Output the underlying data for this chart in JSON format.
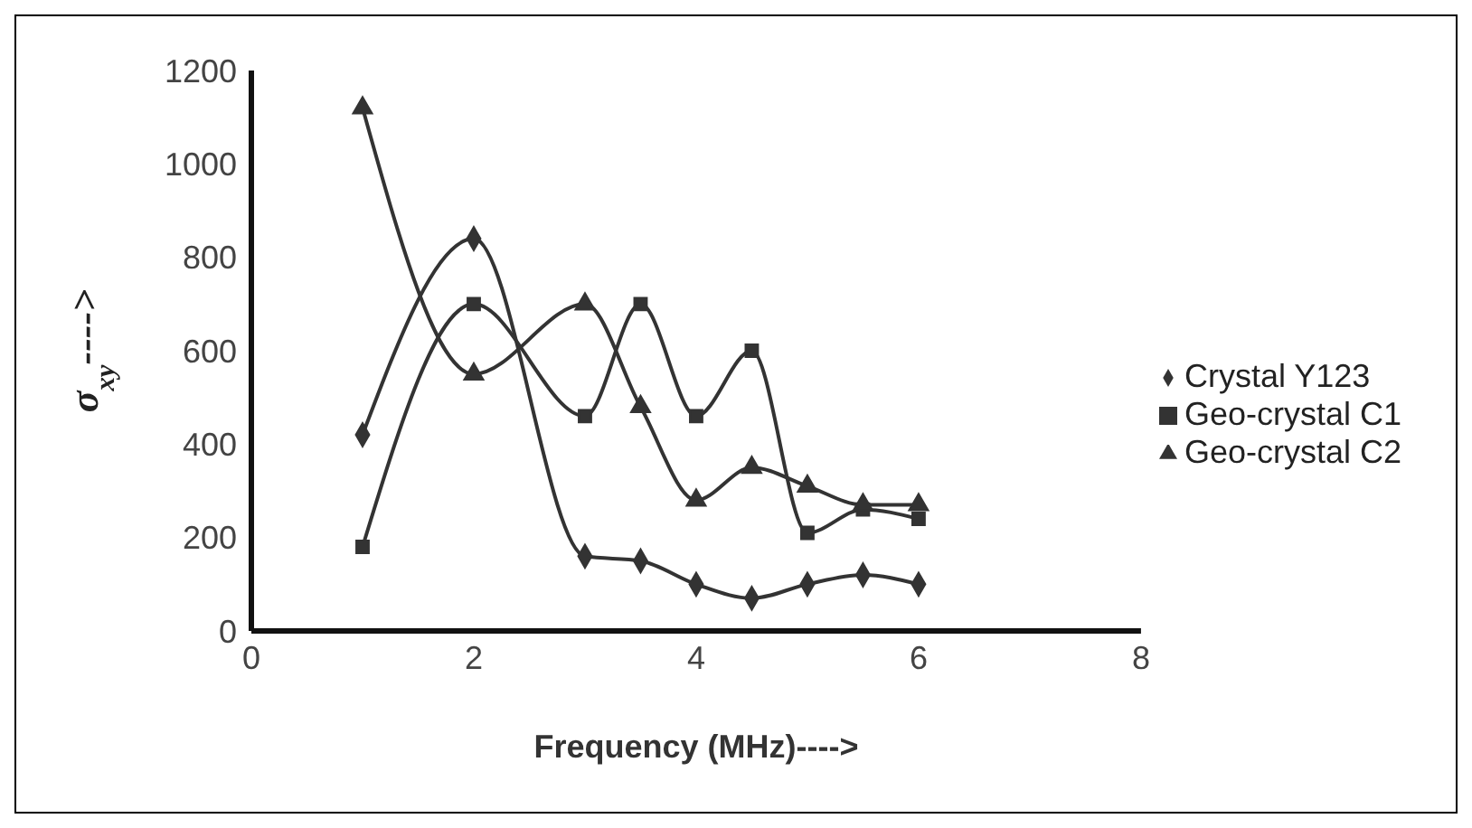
{
  "chart_data": {
    "type": "line",
    "xlabel": "Frequency (MHz)---->",
    "ylabel": "σ$_{xy}$---->",
    "x": [
      1,
      2,
      3,
      3.5,
      4,
      4.5,
      5,
      5.5,
      6
    ],
    "series": [
      {
        "name": "Crystal Y123",
        "color": "#333333",
        "marker": "diamond",
        "values": [
          420,
          840,
          160,
          150,
          100,
          70,
          100,
          120,
          100
        ]
      },
      {
        "name": "Geo-crystal C1",
        "color": "#333333",
        "marker": "square",
        "values": [
          180,
          700,
          460,
          700,
          460,
          600,
          210,
          260,
          240
        ]
      },
      {
        "name": "Geo-crystal C2",
        "color": "#333333",
        "marker": "triangle",
        "values": [
          1120,
          550,
          700,
          480,
          280,
          350,
          310,
          270,
          270
        ]
      }
    ],
    "xlim": [
      0,
      8
    ],
    "xticks": [
      0,
      2,
      4,
      6,
      8
    ],
    "ylim": [
      0,
      1200
    ],
    "yticks": [
      0,
      200,
      400,
      600,
      800,
      1000,
      1200
    ],
    "grid": false,
    "legend": "right",
    "line_style": "solid"
  }
}
